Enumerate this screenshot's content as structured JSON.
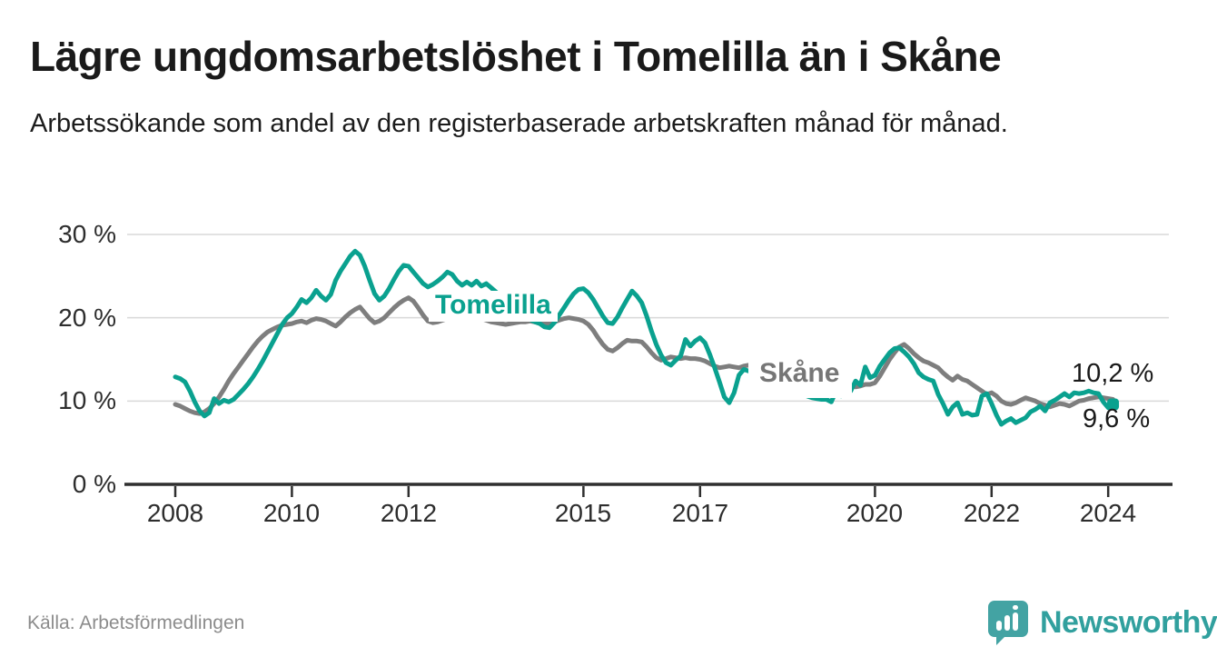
{
  "header": {
    "title": "Lägre ungdomsarbetslöshet i Tomelilla än i Skåne",
    "subtitle": "Arbetssökande som andel av den registerbaserade arbetskraften månad för månad."
  },
  "source": {
    "label": "Källa: Arbetsförmedlingen"
  },
  "branding": {
    "name": "Newsworthy",
    "logo_icon": "bar-chart-speech-bubble",
    "logo_color": "#43a3a3"
  },
  "colors": {
    "tomelilla_line": "#0aa18f",
    "skane_line": "#7e7e7e",
    "gridline": "#d9d9d9",
    "axis": "#2f2f2f",
    "end_label_text": "#1a1a1a"
  },
  "chart_data": {
    "type": "line",
    "title": "Lägre ungdomsarbetslöshet i Tomelilla än i Skåne",
    "subtitle": "Arbetssökande som andel av den registerbaserade arbetskraften månad för månad.",
    "xlabel": "",
    "ylabel": "",
    "x_unit": "months from 2008-01 to 2024-02",
    "x_start": "2008-01",
    "x_end": "2024-02",
    "ylim": [
      0,
      30
    ],
    "grid": "horizontal",
    "y_ticks": [
      0,
      10,
      20,
      30
    ],
    "y_tick_labels": [
      "0 %",
      "10 %",
      "20 %",
      "30 %"
    ],
    "x_tick_years": [
      2008,
      2010,
      2012,
      2015,
      2017,
      2020,
      2022,
      2024
    ],
    "x_tick_labels": [
      "2008",
      "2010",
      "2012",
      "2015",
      "2017",
      "2020",
      "2022",
      "2024"
    ],
    "series": [
      {
        "name": "Skåne",
        "color": "#7e7e7e",
        "end_label": "10,2 %",
        "end_value": 10.2,
        "end_marker": false,
        "values": [
          9.6,
          9.4,
          9.1,
          8.8,
          8.6,
          8.5,
          8.7,
          9.1,
          9.7,
          10.5,
          11.4,
          12.4,
          13.3,
          14.1,
          14.9,
          15.7,
          16.5,
          17.2,
          17.8,
          18.3,
          18.6,
          18.9,
          19.1,
          19.2,
          19.3,
          19.5,
          19.6,
          19.4,
          19.7,
          19.9,
          19.8,
          19.6,
          19.3,
          19.0,
          19.5,
          20.1,
          20.6,
          21.0,
          21.3,
          20.6,
          19.9,
          19.4,
          19.6,
          20.0,
          20.6,
          21.2,
          21.7,
          22.1,
          22.4,
          22.0,
          21.2,
          20.3,
          19.6,
          19.4,
          19.5,
          19.7,
          19.9,
          20.1,
          20.2,
          20.0,
          19.8,
          19.9,
          20.1,
          19.9,
          19.7,
          19.5,
          19.4,
          19.3,
          19.2,
          19.3,
          19.4,
          19.5,
          19.5,
          19.6,
          19.5,
          19.4,
          19.3,
          19.3,
          19.5,
          19.7,
          19.9,
          20.0,
          19.9,
          19.8,
          19.6,
          19.2,
          18.5,
          17.6,
          16.8,
          16.2,
          16.0,
          16.4,
          16.9,
          17.3,
          17.2,
          17.2,
          17.1,
          16.5,
          15.8,
          15.2,
          14.9,
          15.1,
          15.3,
          15.2,
          15.1,
          15.2,
          15.1,
          15.1,
          15.0,
          14.8,
          14.5,
          14.2,
          14.0,
          14.1,
          14.2,
          14.1,
          14.0,
          14.2,
          14.3,
          14.3,
          14.2,
          14.0,
          13.8,
          13.6,
          13.4,
          13.2,
          13.0,
          12.8,
          12.7,
          12.5,
          12.4,
          12.3,
          12.3,
          12.2,
          12.1,
          12.0,
          12.2,
          12.0,
          12.3,
          11.9,
          11.7,
          11.8,
          12.0,
          12.0,
          12.2,
          13.0,
          14.0,
          15.0,
          15.8,
          16.5,
          16.8,
          16.3,
          15.7,
          15.2,
          14.8,
          14.6,
          14.3,
          14.0,
          13.4,
          12.9,
          12.5,
          13.0,
          12.6,
          12.4,
          12.0,
          11.6,
          11.2,
          10.8,
          11.0,
          10.6,
          10.0,
          9.7,
          9.6,
          9.8,
          10.1,
          10.4,
          10.2,
          10.0,
          9.7,
          9.5,
          9.3,
          9.5,
          9.7,
          9.6,
          9.4,
          9.7,
          10.0,
          10.1,
          10.3,
          10.4,
          10.5,
          10.4,
          10.3,
          10.2
        ]
      },
      {
        "name": "Tomelilla",
        "color": "#0aa18f",
        "end_label": "9,6 %",
        "end_value": 9.6,
        "end_marker": true,
        "values": [
          12.9,
          12.7,
          12.3,
          11.2,
          9.9,
          8.8,
          8.2,
          8.6,
          10.3,
          9.7,
          10.1,
          9.9,
          10.2,
          10.8,
          11.4,
          12.1,
          12.9,
          13.8,
          14.8,
          15.9,
          17.0,
          18.1,
          19.2,
          20.0,
          20.5,
          21.3,
          22.2,
          21.8,
          22.4,
          23.3,
          22.6,
          22.1,
          22.8,
          24.5,
          25.6,
          26.5,
          27.4,
          28.0,
          27.5,
          26.2,
          24.5,
          22.9,
          22.1,
          22.6,
          23.5,
          24.6,
          25.6,
          26.3,
          26.2,
          25.5,
          24.8,
          24.1,
          23.7,
          24.0,
          24.4,
          24.9,
          25.5,
          25.2,
          24.4,
          23.9,
          24.3,
          23.9,
          24.4,
          23.8,
          24.1,
          23.6,
          23.1,
          22.6,
          22.1,
          21.6,
          21.0,
          20.5,
          20.1,
          19.8,
          19.5,
          19.3,
          18.9,
          18.8,
          19.4,
          20.3,
          21.2,
          22.1,
          22.9,
          23.4,
          23.5,
          23.0,
          22.2,
          21.2,
          20.2,
          19.4,
          19.3,
          20.1,
          21.2,
          22.2,
          23.2,
          22.6,
          21.8,
          20.2,
          18.4,
          16.8,
          15.5,
          14.6,
          14.3,
          14.9,
          15.4,
          17.4,
          16.6,
          17.2,
          17.6,
          17.0,
          15.6,
          14.0,
          12.3,
          10.5,
          9.8,
          11.0,
          13.1,
          13.8,
          13.6,
          13.9,
          13.7,
          13.3,
          12.9,
          12.5,
          12.1,
          11.8,
          11.5,
          11.2,
          11.0,
          10.8,
          10.6,
          10.4,
          10.3,
          10.2,
          10.2,
          9.9,
          11.2,
          10.6,
          11.7,
          11.2,
          12.4,
          11.9,
          14.1,
          12.8,
          13.1,
          14.2,
          15.0,
          15.8,
          16.3,
          16.4,
          15.9,
          15.3,
          14.5,
          13.4,
          12.9,
          12.6,
          12.4,
          10.8,
          9.7,
          8.4,
          9.3,
          9.8,
          8.4,
          8.6,
          8.3,
          8.4,
          10.6,
          10.9,
          9.7,
          8.3,
          7.2,
          7.6,
          7.9,
          7.4,
          7.7,
          8.0,
          8.7,
          9.0,
          9.4,
          8.8,
          9.8,
          10.1,
          10.5,
          10.9,
          10.5,
          11.0,
          10.9,
          11.0,
          11.2,
          11.0,
          10.9,
          9.9,
          9.2,
          9.6
        ]
      }
    ],
    "legend_position": "labels-on-lines"
  }
}
